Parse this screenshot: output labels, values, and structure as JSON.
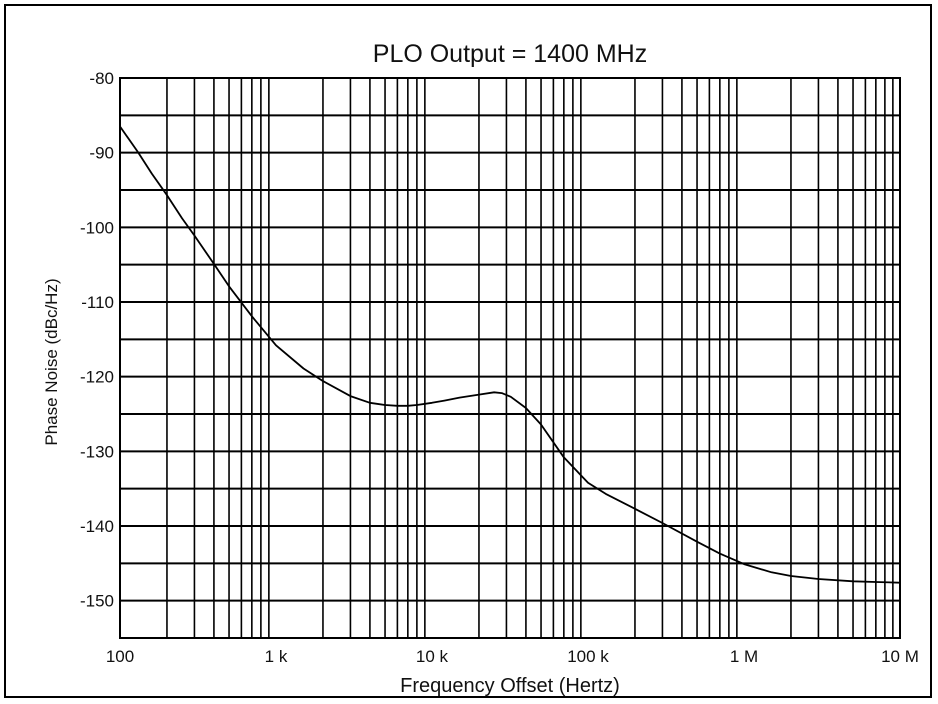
{
  "chart_data": {
    "type": "line",
    "title": "PLO Output = 1400 MHz",
    "xlabel": "Frequency Offset (Hertz)",
    "ylabel": "Phase Noise (dBc/Hz)",
    "x_scale": "log",
    "xlim": [
      100,
      10000000
    ],
    "ylim": [
      -155,
      -80
    ],
    "x_ticks": [
      {
        "value": 100,
        "label": "100"
      },
      {
        "value": 1000,
        "label": "1 k"
      },
      {
        "value": 10000,
        "label": "10 k"
      },
      {
        "value": 100000,
        "label": "100 k"
      },
      {
        "value": 1000000,
        "label": "1 M"
      },
      {
        "value": 10000000,
        "label": "10 M"
      }
    ],
    "y_ticks": [
      {
        "value": -80,
        "label": "-80"
      },
      {
        "value": -90,
        "label": "-90"
      },
      {
        "value": -100,
        "label": "-100"
      },
      {
        "value": -110,
        "label": "-110"
      },
      {
        "value": -120,
        "label": "-120"
      },
      {
        "value": -130,
        "label": "-130"
      },
      {
        "value": -140,
        "label": "-140"
      },
      {
        "value": -150,
        "label": "-150"
      }
    ],
    "grid": true,
    "series": [
      {
        "color": "#000000",
        "x": [
          100,
          130,
          160,
          200,
          250,
          300,
          400,
          500,
          700,
          1000,
          1500,
          2000,
          3000,
          4000,
          5000,
          6000,
          7000,
          8000,
          10000,
          12000,
          15000,
          20000,
          25000,
          28000,
          32000,
          40000,
          50000,
          70000,
          100000,
          130000,
          200000,
          300000,
          500000,
          700000,
          1000000,
          1500000,
          2000000,
          3000000,
          5000000,
          7000000,
          10000000
        ],
        "y": [
          -86.5,
          -89.9,
          -92.8,
          -95.7,
          -98.8,
          -101.1,
          -104.9,
          -107.9,
          -111.9,
          -115.8,
          -118.9,
          -120.6,
          -122.6,
          -123.5,
          -123.8,
          -123.9,
          -123.9,
          -123.8,
          -123.5,
          -123.2,
          -122.8,
          -122.4,
          -122.1,
          -122.2,
          -122.7,
          -124.2,
          -126.4,
          -130.8,
          -134.2,
          -135.7,
          -137.7,
          -139.6,
          -142.1,
          -143.7,
          -145.1,
          -146.2,
          -146.7,
          -147.1,
          -147.4,
          -147.5,
          -147.6
        ]
      }
    ]
  }
}
